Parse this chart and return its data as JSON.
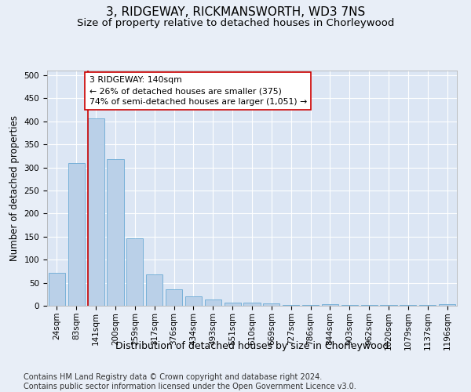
{
  "title": "3, RIDGEWAY, RICKMANSWORTH, WD3 7NS",
  "subtitle": "Size of property relative to detached houses in Chorleywood",
  "xlabel": "Distribution of detached houses by size in Chorleywood",
  "ylabel": "Number of detached properties",
  "footer_line1": "Contains HM Land Registry data © Crown copyright and database right 2024.",
  "footer_line2": "Contains public sector information licensed under the Open Government Licence v3.0.",
  "bar_labels": [
    "24sqm",
    "83sqm",
    "141sqm",
    "200sqm",
    "259sqm",
    "317sqm",
    "376sqm",
    "434sqm",
    "493sqm",
    "551sqm",
    "610sqm",
    "669sqm",
    "727sqm",
    "786sqm",
    "844sqm",
    "903sqm",
    "962sqm",
    "1020sqm",
    "1079sqm",
    "1137sqm",
    "1196sqm"
  ],
  "bar_values": [
    72,
    310,
    407,
    318,
    147,
    68,
    36,
    20,
    13,
    6,
    7,
    5,
    2,
    1,
    3,
    1,
    1,
    1,
    1,
    1,
    4
  ],
  "bar_color": "#bad0e8",
  "bar_edge_color": "#6aaad4",
  "highlight_index": 2,
  "highlight_line_color": "#cc0000",
  "annotation_text": "3 RIDGEWAY: 140sqm\n← 26% of detached houses are smaller (375)\n74% of semi-detached houses are larger (1,051) →",
  "annotation_box_color": "#ffffff",
  "annotation_box_edge_color": "#cc0000",
  "ylim": [
    0,
    510
  ],
  "yticks": [
    0,
    50,
    100,
    150,
    200,
    250,
    300,
    350,
    400,
    450,
    500
  ],
  "background_color": "#e8eef7",
  "plot_background_color": "#dce6f4",
  "grid_color": "#ffffff",
  "title_fontsize": 11,
  "subtitle_fontsize": 9.5,
  "xlabel_fontsize": 9,
  "ylabel_fontsize": 8.5,
  "tick_fontsize": 7.5,
  "annotation_fontsize": 7.8,
  "footer_fontsize": 7
}
